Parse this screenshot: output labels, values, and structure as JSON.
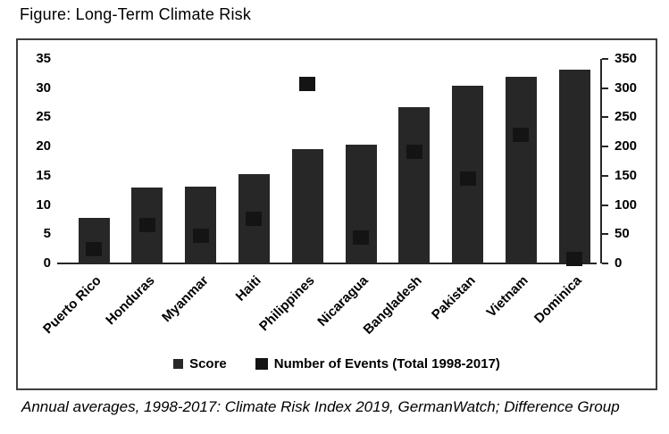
{
  "title": "Figure: Long-Term Climate Risk",
  "caption": "Annual averages, 1998-2017: Climate Risk Index 2019, GermanWatch; Difference Group",
  "chart_data": {
    "type": "bar",
    "title": "Figure: Long-Term Climate Risk",
    "categories": [
      "Puerto Rico",
      "Honduras",
      "Myanmar",
      "Haiti",
      "Philippines",
      "Nicaragua",
      "Bangladesh",
      "Pakistan",
      "Vietnam",
      "Dominica"
    ],
    "series": [
      {
        "name": "Score",
        "axis": "left",
        "type": "bar",
        "values": [
          7.8,
          13.0,
          13.2,
          15.3,
          19.6,
          20.4,
          26.7,
          30.4,
          31.9,
          33.1
        ]
      },
      {
        "name": "Number of Events (Total 1998-2017)",
        "axis": "right",
        "type": "point",
        "values": [
          25,
          65,
          48,
          77,
          307,
          45,
          191,
          145,
          220,
          8
        ]
      }
    ],
    "left_axis": {
      "min": 0,
      "max": 35,
      "step": 5,
      "ticks": [
        0,
        5,
        10,
        15,
        20,
        25,
        30,
        35
      ]
    },
    "right_axis": {
      "min": 0,
      "max": 350,
      "step": 50,
      "ticks": [
        0,
        50,
        100,
        150,
        200,
        250,
        300,
        350
      ]
    },
    "legend": [
      "Score",
      "Number of Events (Total 1998-2017)"
    ],
    "legend_position": "bottom",
    "grid": "off",
    "colors": {
      "bar": "#272727",
      "marker": "#141414",
      "axis": "#262626"
    }
  }
}
